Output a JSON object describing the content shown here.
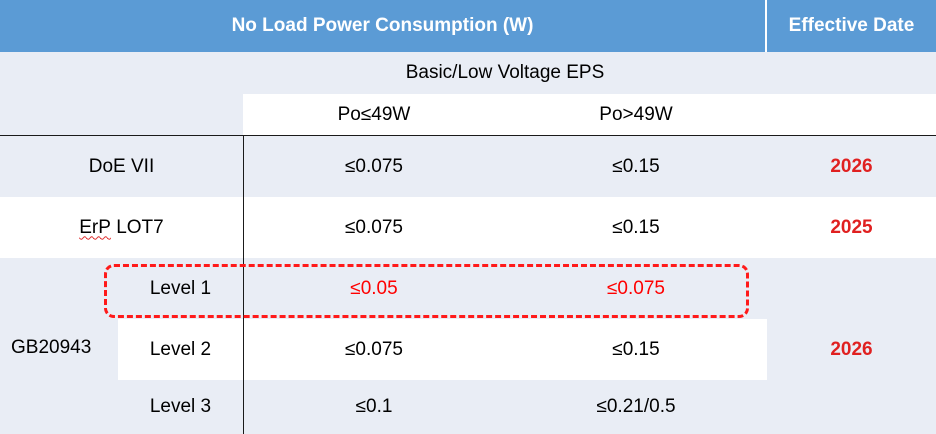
{
  "header": {
    "title": "No Load Power Consumption (W)",
    "date_title": "Effective Date"
  },
  "subheader": {
    "group": "Basic/Low Voltage EPS",
    "col1": "Po≤49W",
    "col2": "Po>49W"
  },
  "rows": [
    {
      "label": "DoE VII",
      "col1": "≤0.075",
      "col2": "≤0.15",
      "date": "2026"
    },
    {
      "label_prefix": "ErP",
      "label_suffix": " LOT7",
      "col1": "≤0.075",
      "col2": "≤0.15",
      "date": "2025"
    }
  ],
  "gb": {
    "label": "GB20943",
    "date": "2026",
    "levels": [
      {
        "label": "Level 1",
        "col1": "≤0.05",
        "col2": "≤0.075"
      },
      {
        "label": "Level 2",
        "col1": "≤0.075",
        "col2": "≤0.15"
      },
      {
        "label": "Level 3",
        "col1": "≤0.1",
        "col2": "≤0.21/0.5"
      }
    ]
  },
  "colors": {
    "header_bg": "#5b9bd5",
    "row_bg_light": "#e9edf5",
    "highlight_red": "#ff0000"
  }
}
